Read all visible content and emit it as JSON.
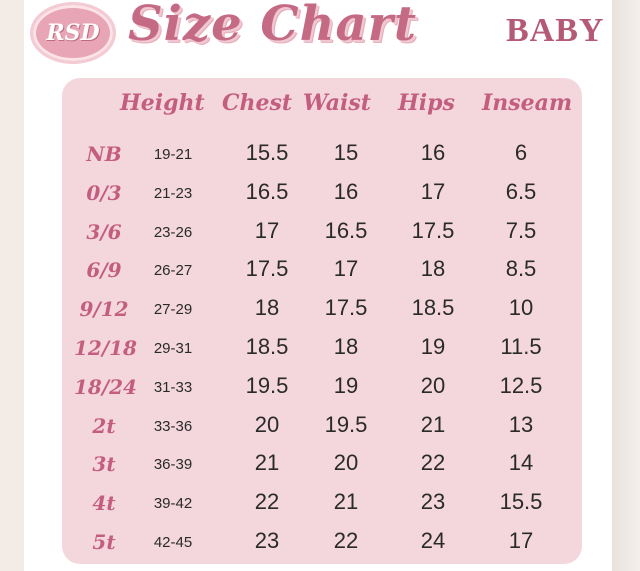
{
  "header": {
    "logo_text": "RSD",
    "title": "Size Chart",
    "subtitle": "BABY"
  },
  "columns": [
    "Height",
    "Chest",
    "Waist",
    "Hips",
    "Inseam"
  ],
  "rows": [
    {
      "size": "NB",
      "height": "19-21",
      "chest": "15.5",
      "waist": "15",
      "hips": "16",
      "inseam": "6"
    },
    {
      "size": "0/3",
      "height": "21-23",
      "chest": "16.5",
      "waist": "16",
      "hips": "17",
      "inseam": "6.5"
    },
    {
      "size": "3/6",
      "height": "23-26",
      "chest": "17",
      "waist": "16.5",
      "hips": "17.5",
      "inseam": "7.5"
    },
    {
      "size": "6/9",
      "height": "26-27",
      "chest": "17.5",
      "waist": "17",
      "hips": "18",
      "inseam": "8.5"
    },
    {
      "size": "9/12",
      "height": "27-29",
      "chest": "18",
      "waist": "17.5",
      "hips": "18.5",
      "inseam": "10"
    },
    {
      "size": "12/18",
      "height": "29-31",
      "chest": "18.5",
      "waist": "18",
      "hips": "19",
      "inseam": "11.5"
    },
    {
      "size": "18/24",
      "height": "31-33",
      "chest": "19.5",
      "waist": "19",
      "hips": "20",
      "inseam": "12.5"
    },
    {
      "size": "2t",
      "height": "33-36",
      "chest": "20",
      "waist": "19.5",
      "hips": "21",
      "inseam": "13"
    },
    {
      "size": "3t",
      "height": "36-39",
      "chest": "21",
      "waist": "20",
      "hips": "22",
      "inseam": "14"
    },
    {
      "size": "4t",
      "height": "39-42",
      "chest": "22",
      "waist": "21",
      "hips": "23",
      "inseam": "15.5"
    },
    {
      "size": "5t",
      "height": "42-45",
      "chest": "23",
      "waist": "22",
      "hips": "24",
      "inseam": "17"
    }
  ],
  "colors": {
    "accent": "#c45e80",
    "panel": "#f3d7dd"
  }
}
